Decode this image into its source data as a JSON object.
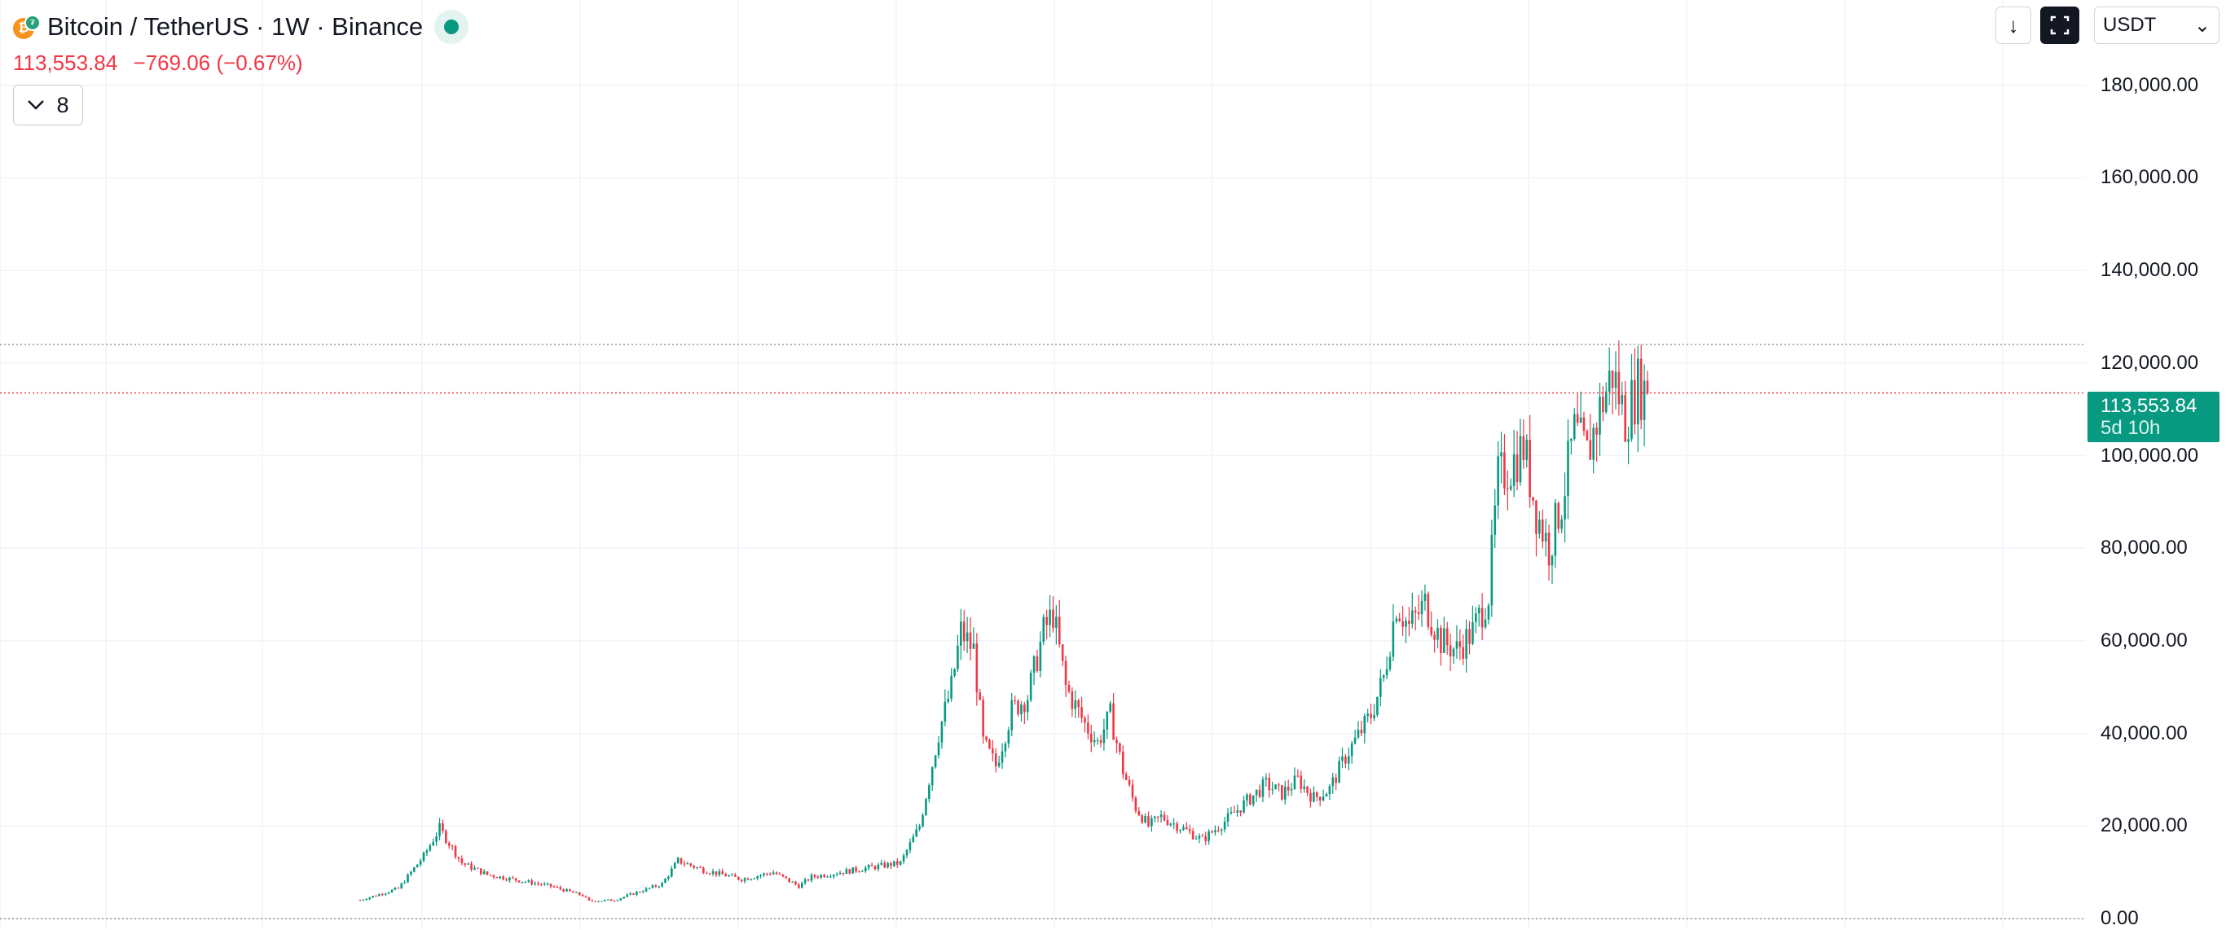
{
  "header": {
    "symbol_title": "Bitcoin / TetherUS · 1W · Binance",
    "logo_glyph": "₿",
    "tether_glyph": "₮",
    "last_price": "113,553.84",
    "change": "−769.06 (−0.67%)",
    "indicator_toggle_count": "8"
  },
  "toolbar": {
    "download_icon": "↓",
    "fullscreen_icon": "⛶",
    "currency": "USDT",
    "currency_chevron": "⌄"
  },
  "price_scale": {
    "labels": [
      "180,000.00",
      "160,000.00",
      "140,000.00",
      "120,000.00",
      "100,000.00",
      "80,000.00",
      "60,000.00",
      "40,000.00",
      "20,000.00",
      "0.00"
    ]
  },
  "last_price_tag": {
    "price": "113,553.84",
    "countdown": "5d 10h"
  },
  "colors": {
    "up": "#089981",
    "down": "#f23645",
    "grid": "#f0f3fa",
    "text": "#131722"
  },
  "chart_data": {
    "type": "candlestick",
    "interval": "1W",
    "yrange": [
      0,
      200000
    ],
    "last_close": 113553.84,
    "all_time_high": 124000,
    "anchors": [
      [
        0,
        4000
      ],
      [
        12,
        6500
      ],
      [
        20,
        13500
      ],
      [
        25,
        19500
      ],
      [
        32,
        12000
      ],
      [
        40,
        9500
      ],
      [
        60,
        7000
      ],
      [
        70,
        5000
      ],
      [
        72,
        3800
      ],
      [
        80,
        4000
      ],
      [
        95,
        7500
      ],
      [
        100,
        12500
      ],
      [
        108,
        10500
      ],
      [
        120,
        8500
      ],
      [
        130,
        10000
      ],
      [
        138,
        7000
      ],
      [
        142,
        9000
      ],
      [
        160,
        11000
      ],
      [
        170,
        12000
      ],
      [
        176,
        20000
      ],
      [
        182,
        40000
      ],
      [
        186,
        50000
      ],
      [
        189,
        62000
      ],
      [
        193,
        58000
      ],
      [
        196,
        38000
      ],
      [
        200,
        33000
      ],
      [
        205,
        45000
      ],
      [
        210,
        48000
      ],
      [
        215,
        62000
      ],
      [
        218,
        66000
      ],
      [
        222,
        50000
      ],
      [
        228,
        42000
      ],
      [
        232,
        38000
      ],
      [
        236,
        44000
      ],
      [
        240,
        32000
      ],
      [
        244,
        24000
      ],
      [
        248,
        20000
      ],
      [
        252,
        22000
      ],
      [
        260,
        19000
      ],
      [
        265,
        17000
      ],
      [
        272,
        21000
      ],
      [
        280,
        26000
      ],
      [
        285,
        29000
      ],
      [
        290,
        27000
      ],
      [
        295,
        30000
      ],
      [
        300,
        26000
      ],
      [
        305,
        28000
      ],
      [
        310,
        35000
      ],
      [
        318,
        44000
      ],
      [
        322,
        52000
      ],
      [
        326,
        68000
      ],
      [
        330,
        63000
      ],
      [
        335,
        68000
      ],
      [
        340,
        60000
      ],
      [
        345,
        58000
      ],
      [
        350,
        62000
      ],
      [
        355,
        70000
      ],
      [
        358,
        95000
      ],
      [
        362,
        98000
      ],
      [
        366,
        102000
      ],
      [
        370,
        88000
      ],
      [
        374,
        80000
      ],
      [
        378,
        90000
      ],
      [
        382,
        105000
      ],
      [
        386,
        100000
      ],
      [
        390,
        110000
      ],
      [
        394,
        118000
      ],
      [
        398,
        108000
      ],
      [
        402,
        115000
      ],
      [
        405,
        113553.84
      ]
    ]
  }
}
